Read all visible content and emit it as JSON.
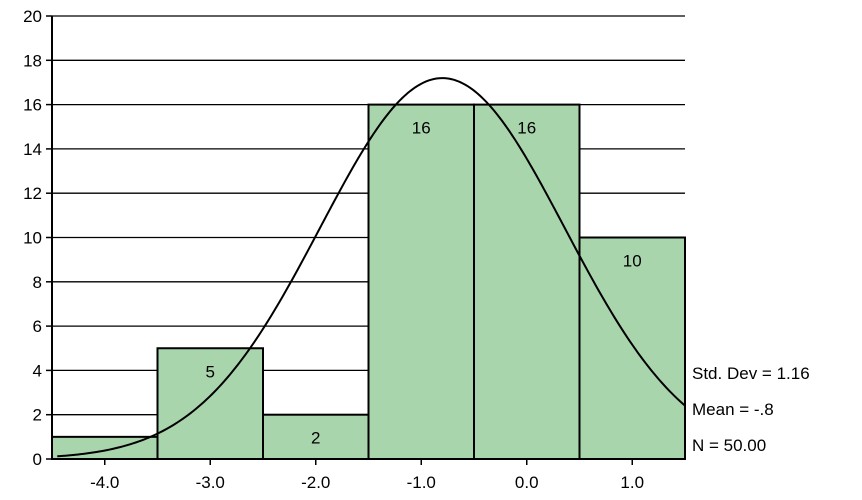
{
  "chart_data": {
    "type": "bar",
    "subtype": "histogram",
    "categories": [
      "-4.0",
      "-3.0",
      "-2.0",
      "-1.0",
      "0.0",
      "1.0"
    ],
    "x": [
      -4.0,
      -3.0,
      -2.0,
      -1.0,
      0.0,
      1.0
    ],
    "values": [
      1,
      5,
      2,
      16,
      16,
      10
    ],
    "data_labels": [
      "",
      "5",
      "2",
      "16",
      "16",
      "10"
    ],
    "bin_width": 1.0,
    "xlim": [
      -4.5,
      1.5
    ],
    "ylim": [
      0,
      20
    ],
    "yticks": [
      "0",
      "2",
      "4",
      "6",
      "8",
      "10",
      "12",
      "14",
      "16",
      "18",
      "20"
    ],
    "xticks": [
      "-4.0",
      "-3.0",
      "-2.0",
      "-1.0",
      "0.0",
      "1.0"
    ],
    "grid": "horizontal",
    "bar_color": "#a9d5ad",
    "normal_curve": {
      "mean": -0.8,
      "std": 1.16,
      "n": 50
    },
    "stats": [
      "Std. Dev = 1.16",
      "Mean = -.8",
      "N = 50.00"
    ]
  }
}
